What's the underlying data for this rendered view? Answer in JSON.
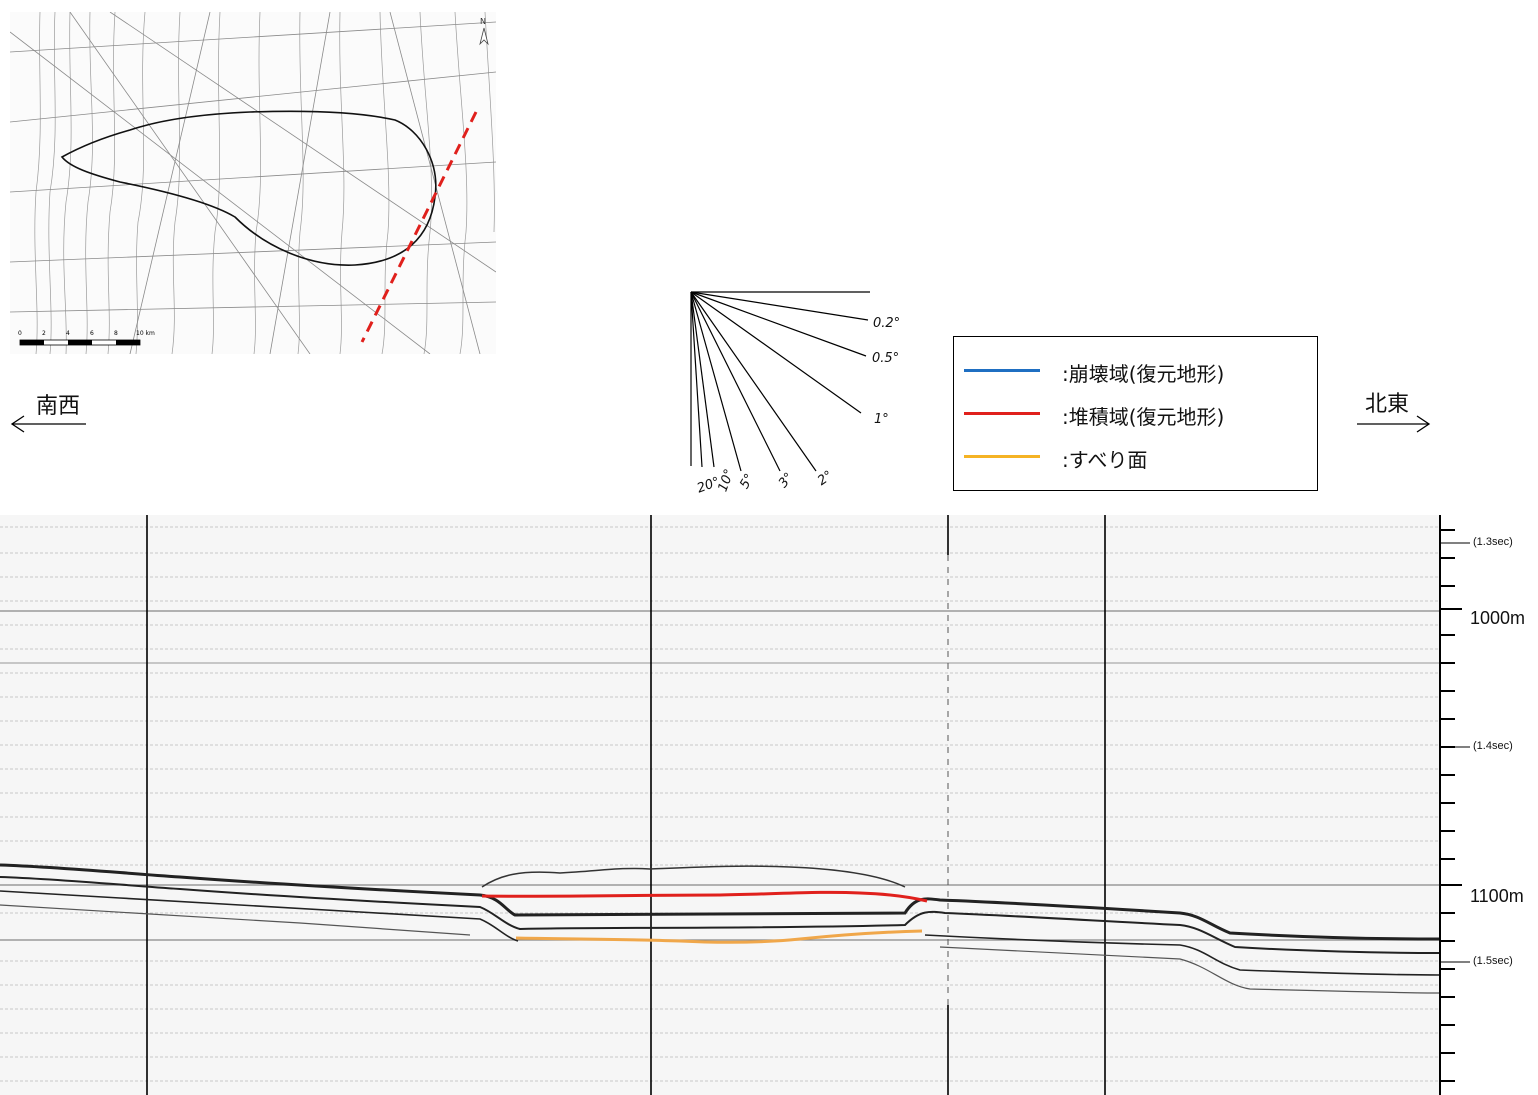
{
  "map": {
    "north_label": "N",
    "scale_labels": [
      "0",
      "2",
      "4",
      "6",
      "8",
      "10 km"
    ]
  },
  "fan": {
    "angles": [
      "0.2°",
      "0.5°",
      "1°",
      "2°",
      "3°",
      "5°",
      "10°",
      "20°"
    ]
  },
  "legend": {
    "items": [
      {
        "label": ":崩壊域(復元地形)",
        "color": "#1f6fc2"
      },
      {
        "label": ":堆積域(復元地形)",
        "color": "#e0201c"
      },
      {
        "label": ":すべり面",
        "color": "#f5b324"
      }
    ]
  },
  "directions": {
    "left": "南西",
    "right": "北東"
  },
  "profile": {
    "depth_labels": [
      "1000m",
      "1100m"
    ],
    "time_labels": [
      "(1.3sec)",
      "(1.4sec)",
      "(1.5sec)"
    ],
    "colors": {
      "deposit": "#e0201c",
      "slip": "#f0a74a"
    }
  }
}
